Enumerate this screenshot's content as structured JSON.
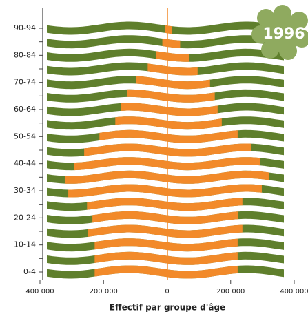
{
  "chart_data": {
    "type": "pyramid",
    "annotation": "1996",
    "xlabel": "Effectif par groupe d'âge",
    "categories": [
      "0-4",
      null,
      "10-14",
      null,
      "20-24",
      null,
      "30-34",
      null,
      "40-44",
      null,
      "50-54",
      null,
      "60-64",
      null,
      "70-74",
      null,
      "80-84",
      null,
      "90-94"
    ],
    "series": [
      {
        "color": "#f28a2a",
        "values": [
          -228000,
          -228000,
          -228000,
          -250000,
          -235000,
          -252000,
          -311000,
          -322000,
          -293000,
          -261000,
          -213000,
          -163000,
          -146000,
          -126000,
          -98000,
          -61000,
          -35000,
          -15000,
          -6500
        ]
      },
      {
        "color": "#f28a2a",
        "values": [
          222000,
          222000,
          222000,
          237000,
          224000,
          237000,
          298000,
          320000,
          293000,
          265000,
          222000,
          172000,
          159000,
          150000,
          135000,
          96000,
          70000,
          41000,
          15000
        ]
      }
    ],
    "band_color": "#5f7f2c",
    "xlim": [
      -400000,
      400000
    ],
    "xticks": [
      {
        "value": -400000,
        "label": "400 000"
      },
      {
        "value": -200000,
        "label": "200 000"
      },
      0,
      {
        "value": 200000,
        "label": "200 000"
      },
      {
        "value": 400000,
        "label": "400 000"
      }
    ]
  }
}
